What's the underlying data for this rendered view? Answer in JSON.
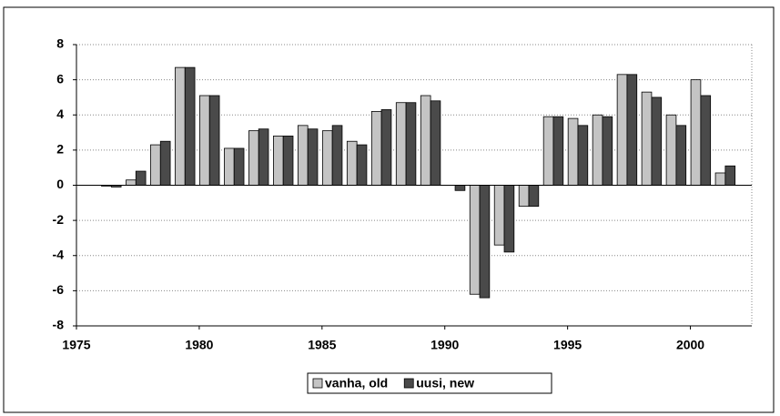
{
  "chart_data": {
    "type": "bar",
    "x": [
      1975,
      1976,
      1977,
      1978,
      1979,
      1980,
      1981,
      1982,
      1983,
      1984,
      1985,
      1986,
      1987,
      1988,
      1989,
      1990,
      1991,
      1992,
      1993,
      1994,
      1995,
      1996,
      1997,
      1998,
      1999,
      2000,
      2001
    ],
    "series": [
      {
        "name": "vanha, old",
        "color": "#c4c4c4",
        "values": [
          0,
          -0.05,
          0.3,
          2.3,
          6.7,
          5.1,
          2.1,
          3.1,
          2.8,
          3.4,
          3.1,
          2.5,
          4.2,
          4.7,
          5.1,
          0,
          -6.2,
          -3.4,
          -1.2,
          3.9,
          3.8,
          4.0,
          6.3,
          5.3,
          4.0,
          6.0,
          0.7
        ]
      },
      {
        "name": "uusi, new",
        "color": "#4a4a4a",
        "values": [
          0,
          -0.1,
          0.8,
          2.5,
          6.7,
          5.1,
          2.1,
          3.2,
          2.8,
          3.2,
          3.4,
          2.3,
          4.3,
          4.7,
          4.8,
          -0.3,
          -6.4,
          -3.8,
          -1.2,
          3.9,
          3.4,
          3.9,
          6.3,
          5.0,
          3.4,
          5.1,
          1.1
        ]
      }
    ],
    "xlim": [
      1975,
      2002.5
    ],
    "xticks": [
      1975,
      1980,
      1985,
      1990,
      1995,
      2000
    ],
    "ylim": [
      -8,
      8
    ],
    "yticks": [
      -8,
      -6,
      -4,
      -2,
      0,
      2,
      4,
      6,
      8
    ],
    "grid": true,
    "legend": "bottom"
  }
}
